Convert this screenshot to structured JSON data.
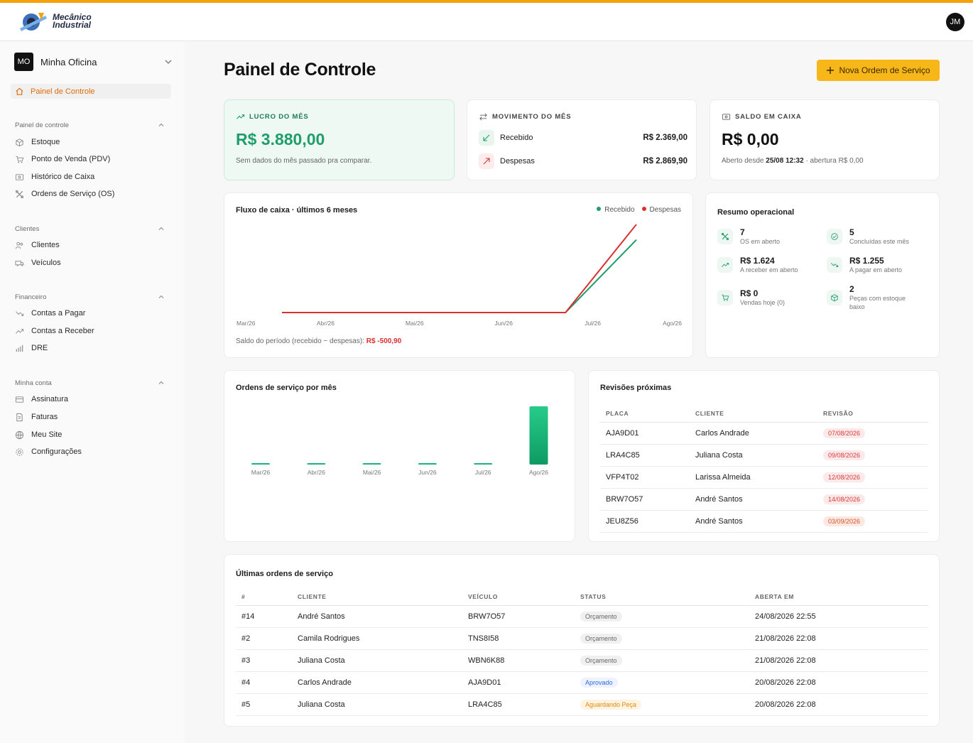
{
  "app": {
    "logo_line1": "Mecânico",
    "logo_line2": "Industrial",
    "user_initials": "JM",
    "accent_color": "#f5a10b"
  },
  "sidebar": {
    "org_initials": "MO",
    "org_name": "Minha Oficina",
    "active_item": "Painel de Controle",
    "groups": [
      {
        "title": "Painel de controle",
        "items": [
          "Estoque",
          "Ponto de Venda (PDV)",
          "Histórico de Caixa",
          "Ordens de Serviço (OS)"
        ]
      },
      {
        "title": "Clientes",
        "items": [
          "Clientes",
          "Veículos"
        ]
      },
      {
        "title": "Financeiro",
        "items": [
          "Contas a Pagar",
          "Contas a Receber",
          "DRE"
        ]
      },
      {
        "title": "Minha conta",
        "items": [
          "Assinatura",
          "Faturas",
          "Meu Site",
          "Configurações"
        ]
      }
    ]
  },
  "header": {
    "title": "Painel de Controle",
    "new_os_button": "Nova Ordem de Serviço"
  },
  "lucro": {
    "label": "LUCRO DO MÊS",
    "value": "R$ 3.880,00",
    "note": "Sem dados do mês passado pra comparar."
  },
  "movimento": {
    "label": "MOVIMENTO DO MÊS",
    "recebido_label": "Recebido",
    "recebido_value": "R$ 2.369,00",
    "despesas_label": "Despesas",
    "despesas_value": "R$ 2.869,90"
  },
  "saldo": {
    "label": "SALDO EM CAIXA",
    "value": "R$ 0,00",
    "note_prefix": "Aberto desde",
    "note_date": "25/08 12:32",
    "note_suffix": "· abertura R$ 0,00"
  },
  "fluxo": {
    "title": "Fluxo de caixa · últimos 6 meses",
    "legend_recebido": "Recebido",
    "legend_despesas": "Despesas",
    "saldo_label": "Saldo do período (recebido − despesas):",
    "saldo_value": "R$ -500,90"
  },
  "chart_data": [
    {
      "type": "line",
      "title": "Fluxo de caixa · últimos 6 meses",
      "categories": [
        "Mar/26",
        "Abr/26",
        "Mai/26",
        "Jun/26",
        "Jul/26",
        "Ago/26"
      ],
      "series": [
        {
          "name": "Recebido",
          "color": "#1f9d6b",
          "values": [
            0,
            0,
            0,
            0,
            0,
            2369.0
          ]
        },
        {
          "name": "Despesas",
          "color": "#d93030",
          "values": [
            0,
            0,
            0,
            0,
            0,
            2869.9
          ]
        }
      ],
      "grid": false,
      "legend": "top-right"
    },
    {
      "type": "bar",
      "title": "Ordens de serviço por mês",
      "categories": [
        "Mar/26",
        "Abr/26",
        "Mai/26",
        "Jun/26",
        "Jul/26",
        "Ago/26"
      ],
      "values": [
        0,
        0,
        0,
        0,
        0,
        14
      ],
      "color": "#17b47a"
    }
  ],
  "resumo": {
    "title": "Resumo operacional",
    "items": [
      {
        "value": "7",
        "label": "OS em aberto",
        "icon": "wrench-icon"
      },
      {
        "value": "5",
        "label": "Concluídas este mês",
        "icon": "check-circle-icon"
      },
      {
        "value": "R$ 1.624",
        "label": "A receber em aberto",
        "icon": "trend-up-icon"
      },
      {
        "value": "R$ 1.255",
        "label": "A pagar em aberto",
        "icon": "trend-down-icon"
      },
      {
        "value": "R$ 0",
        "label": "Vendas hoje (0)",
        "icon": "cart-icon"
      },
      {
        "value": "2",
        "label": "Peças com estoque baixo",
        "icon": "box-icon"
      }
    ]
  },
  "os_chart": {
    "title": "Ordens de serviço por mês"
  },
  "revisoes": {
    "title": "Revisões próximas",
    "columns": [
      "PLACA",
      "CLIENTE",
      "REVISÃO"
    ],
    "rows": [
      {
        "placa": "AJA9D01",
        "cliente": "Carlos Andrade",
        "revisao": "07/08/2026",
        "tone": "red"
      },
      {
        "placa": "LRA4C85",
        "cliente": "Juliana Costa",
        "revisao": "09/08/2026",
        "tone": "red"
      },
      {
        "placa": "VFP4T02",
        "cliente": "Larissa Almeida",
        "revisao": "12/08/2026",
        "tone": "red"
      },
      {
        "placa": "BRW7O57",
        "cliente": "André Santos",
        "revisao": "14/08/2026",
        "tone": "red"
      },
      {
        "placa": "JEU8Z56",
        "cliente": "André Santos",
        "revisao": "03/09/2026",
        "tone": "orange"
      }
    ]
  },
  "ultimas": {
    "title": "Últimas ordens de serviço",
    "columns": [
      "#",
      "CLIENTE",
      "VEÍCULO",
      "STATUS",
      "ABERTA EM"
    ],
    "rows": [
      {
        "num": "#14",
        "cliente": "André Santos",
        "veiculo": "BRW7O57",
        "status": "Orçamento",
        "tone": "gray",
        "aberta": "24/08/2026 22:55"
      },
      {
        "num": "#2",
        "cliente": "Camila Rodrigues",
        "veiculo": "TNS8I58",
        "status": "Orçamento",
        "tone": "gray",
        "aberta": "21/08/2026 22:08"
      },
      {
        "num": "#3",
        "cliente": "Juliana Costa",
        "veiculo": "WBN6K88",
        "status": "Orçamento",
        "tone": "gray",
        "aberta": "21/08/2026 22:08"
      },
      {
        "num": "#4",
        "cliente": "Carlos Andrade",
        "veiculo": "AJA9D01",
        "status": "Aprovado",
        "tone": "blue",
        "aberta": "20/08/2026 22:08"
      },
      {
        "num": "#5",
        "cliente": "Juliana Costa",
        "veiculo": "LRA4C85",
        "status": "Aguardando Peça",
        "tone": "amber",
        "aberta": "20/08/2026 22:08"
      }
    ]
  }
}
